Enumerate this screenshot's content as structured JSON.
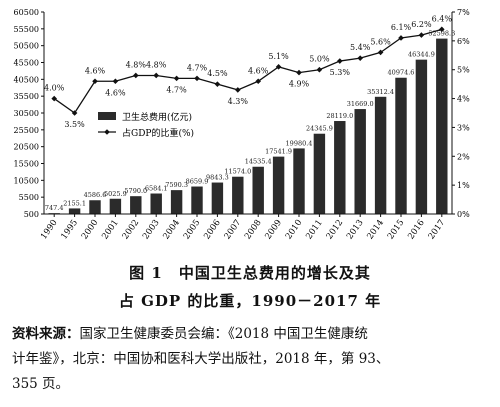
{
  "chart_data": {
    "type": "bar+line",
    "categories": [
      "1990",
      "1995",
      "2000",
      "2001",
      "2002",
      "2003",
      "2004",
      "2005",
      "2006",
      "2007",
      "2008",
      "2009",
      "2010",
      "2011",
      "2012",
      "2013",
      "2014",
      "2015",
      "2016",
      "2017"
    ],
    "series": [
      {
        "name": "卫生总费用(亿元)",
        "kind": "bar",
        "axis": "left",
        "values": [
          747.4,
          2155.1,
          4586.6,
          5025.9,
          5790.0,
          6584.1,
          7590.3,
          8659.9,
          9843.3,
          11574.0,
          14535.4,
          17541.9,
          19980.4,
          24345.9,
          28119.0,
          31669.0,
          35312.4,
          40974.6,
          46344.9,
          52598.3
        ],
        "labels": [
          "747.4",
          "2155.1",
          "4586.6",
          "5025.9",
          "5790.0",
          "6584.1",
          "7590.3",
          "8659.9",
          "9843.3",
          "11574.0",
          "14535.4",
          "17541.9",
          "19980.4",
          "24345.9",
          "28119.0",
          "31669.0",
          "35312.4",
          "40974.6",
          "46344.9",
          "52598.3"
        ]
      },
      {
        "name": "占GDP的比重(%)",
        "kind": "line",
        "axis": "right",
        "values": [
          4.0,
          3.5,
          4.6,
          4.6,
          4.8,
          4.8,
          4.7,
          4.7,
          4.5,
          4.3,
          4.6,
          5.1,
          4.9,
          5.0,
          5.3,
          5.4,
          5.6,
          6.1,
          6.2,
          6.4
        ],
        "labels": [
          "4.0%",
          "3.5%",
          "4.6%",
          "4.6%",
          "4.8%",
          "4.8%",
          "4.7%",
          "4.7%",
          "4.5%",
          "4.3%",
          "4.6%",
          "5.1%",
          "4.9%",
          "5.0%",
          "5.3%",
          "5.4%",
          "5.6%",
          "6.1%",
          "6.2%",
          "6.4%"
        ]
      }
    ],
    "ylim_left": [
      500,
      60500
    ],
    "yticks_left": [
      "500",
      "5500",
      "10500",
      "15500",
      "20500",
      "25500",
      "30500",
      "35500",
      "40500",
      "45500",
      "50500",
      "55500",
      "60500"
    ],
    "ylim_right": [
      0,
      7
    ],
    "yticks_right": [
      "0%",
      "1%",
      "2%",
      "3%",
      "4%",
      "5%",
      "6%",
      "7%"
    ],
    "legend_position": "upper-left inside plot",
    "grid": false,
    "bar_color": "#2b2b2b",
    "line_color": "#111111"
  },
  "caption": {
    "line1": "图 1　中国卫生总费用的增长及其",
    "line2": "占 GDP 的比重，1990－2017 年"
  },
  "source": {
    "label": "资料来源：",
    "line1": "国家卫生健康委员会编：《2018 中国卫生健康统",
    "line2": "计年鉴》，北京：中国协和医科大学出版社，2018 年，第 93、",
    "line3": "355 页。"
  }
}
